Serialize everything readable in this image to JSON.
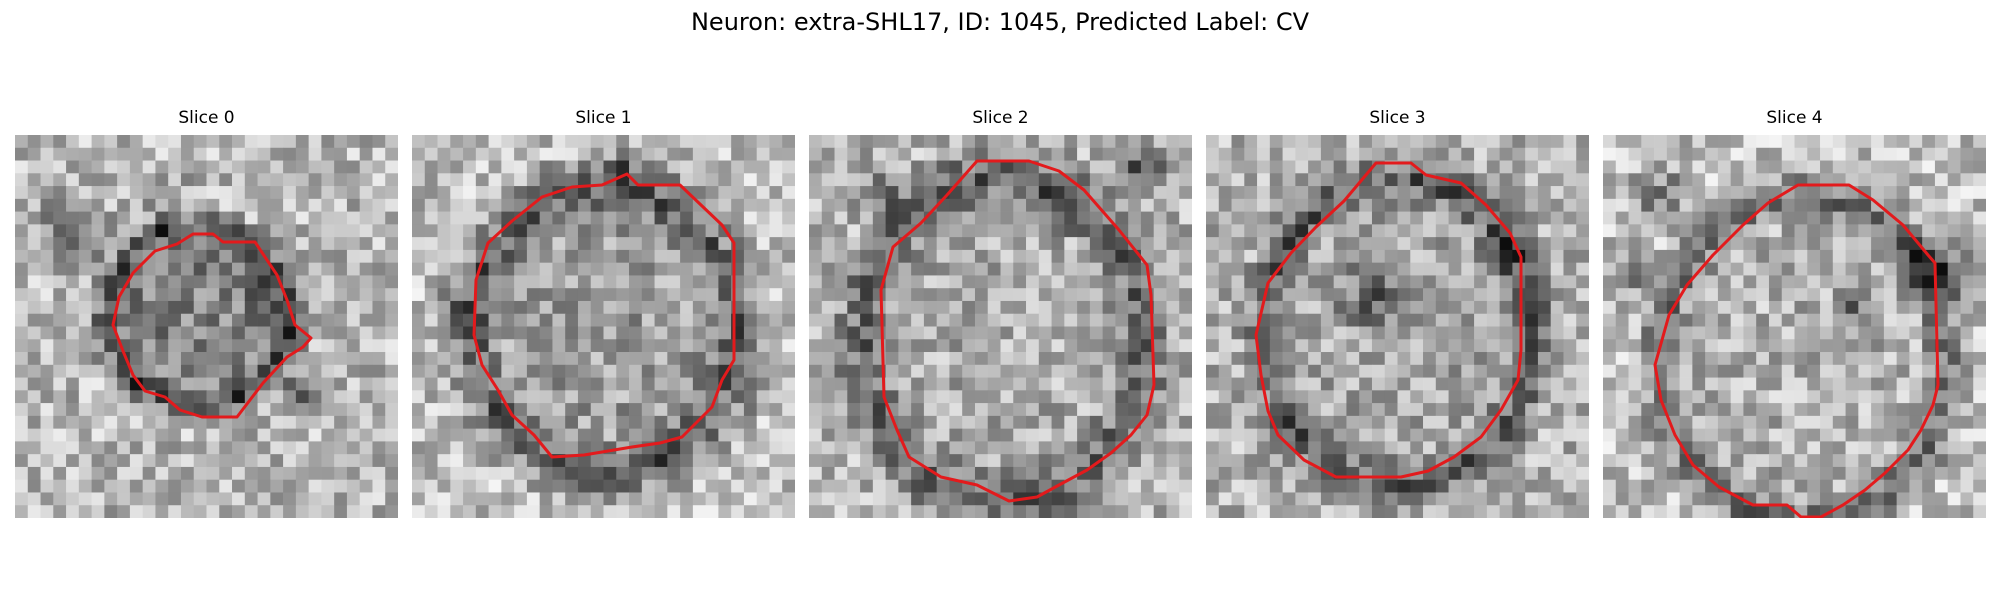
{
  "figure": {
    "title": "Neuron: extra-SHL17, ID: 1045, Predicted Label: CV"
  },
  "colors": {
    "contour": "#e31a1c",
    "background": "#ffffff"
  },
  "panels": [
    {
      "title": "Slice 0"
    },
    {
      "title": "Slice 1"
    },
    {
      "title": "Slice 2"
    },
    {
      "title": "Slice 3"
    },
    {
      "title": "Slice 4"
    }
  ]
}
